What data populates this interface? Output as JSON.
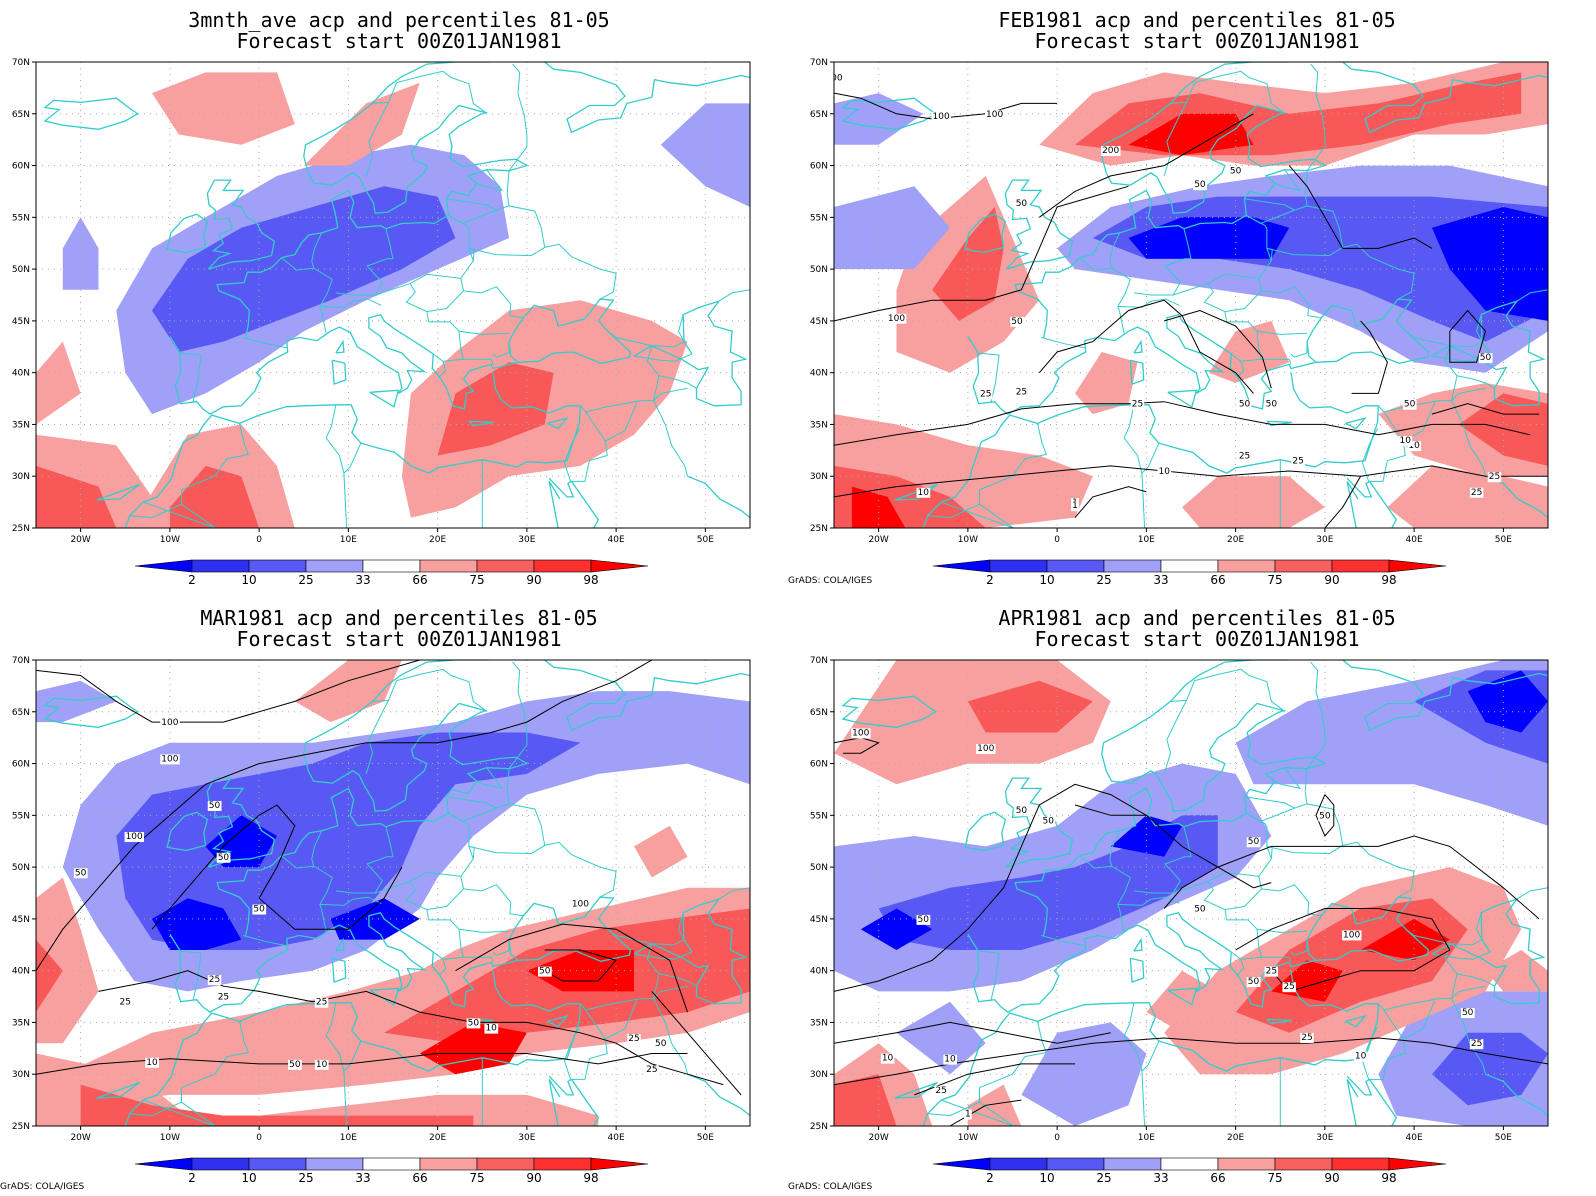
{
  "colors": {
    "blue_deep": "#0000ff",
    "blue_mid": "#5858f4",
    "blue_light": "#a0a0f8",
    "red_light": "#f8a0a0",
    "red_mid": "#f85858",
    "red_deep": "#ff0000",
    "coast": "#33cccc",
    "contour": "#000000"
  },
  "map": {
    "lon_labels": [
      "20W",
      "10W",
      "0",
      "10E",
      "20E",
      "30E",
      "40E",
      "50E"
    ],
    "lat_labels": [
      "70N",
      "65N",
      "60N",
      "55N",
      "50N",
      "45N",
      "40N",
      "35N",
      "30N",
      "25N"
    ],
    "legend_labels": [
      "2",
      "10",
      "25",
      "33",
      "66",
      "75",
      "90",
      "98"
    ],
    "legend_colors": [
      "#0000ff",
      "#3030f0",
      "#5858f4",
      "#a0a0f8",
      "#ffffff",
      "#f8a0a0",
      "#f86060",
      "#ff3030",
      "#ff0000"
    ]
  },
  "panels": [
    {
      "title_line1": "3mnth_ave acp and percentiles 81-05",
      "title_line2": "Forecast start 00Z01JAN1981",
      "credit": "",
      "contour_labels": []
    },
    {
      "title_line1": "FEB1981 acp and percentiles 81-05",
      "title_line2": "Forecast start 00Z01JAN1981",
      "credit": "GrADS: COLA/IGES",
      "contour_labels": [
        "100",
        "200",
        "100",
        "50",
        "50",
        "50",
        "100",
        "50",
        "25",
        "25",
        "50",
        "50",
        "25",
        "10",
        "1",
        "1",
        "10",
        "25",
        "25",
        "50",
        "10",
        "25",
        "50",
        "10",
        "25",
        "100"
      ]
    },
    {
      "title_line1": "MAR1981 acp and percentiles 81-05",
      "title_line2": "Forecast start 00Z01JAN1981",
      "credit": "GrADS: COLA/IGES",
      "contour_labels": [
        "100",
        "100",
        "50",
        "100",
        "50",
        "50",
        "50",
        "25",
        "25",
        "25",
        "25",
        "50",
        "100",
        "50",
        "10",
        "10",
        "25",
        "10",
        "50",
        "25",
        "50"
      ]
    },
    {
      "title_line1": "APR1981 acp and percentiles 81-05",
      "title_line2": "Forecast start 00Z01JAN1981",
      "credit": "GrADS: COLA/IGES",
      "contour_labels": [
        "100",
        "100",
        "50",
        "50",
        "50",
        "50",
        "50",
        "50",
        "100",
        "25",
        "50",
        "25",
        "10",
        "25",
        "10",
        "10",
        "50",
        "25",
        "25",
        "1"
      ]
    }
  ]
}
